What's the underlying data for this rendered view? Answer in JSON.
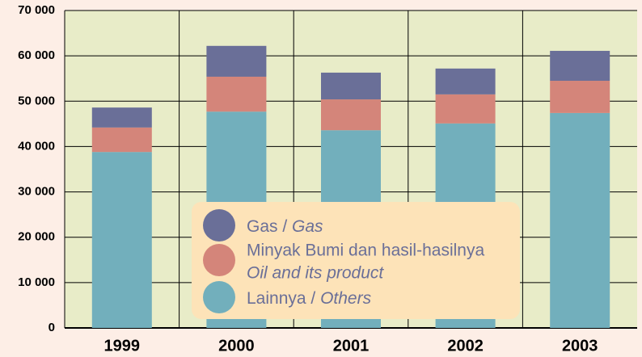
{
  "chart_data": {
    "type": "stacked_bar",
    "categories": [
      "1999",
      "2000",
      "2001",
      "2002",
      "2003"
    ],
    "series": [
      {
        "name": "Lainnya / ",
        "name_italic": "Others",
        "color": "#72afbc",
        "values": [
          38800,
          47700,
          43600,
          45100,
          47400
        ]
      },
      {
        "name": "Minyak Bumi dan hasil-hasilnya",
        "name_italic": "Oil and its product",
        "color": "#d4857a",
        "values": [
          5400,
          7700,
          6800,
          6400,
          7100
        ]
      },
      {
        "name": "Gas / ",
        "name_italic": "Gas",
        "color": "#6a6f98",
        "values": [
          4400,
          6800,
          5900,
          5700,
          6600
        ]
      }
    ],
    "ylim": [
      0,
      70000
    ],
    "yticks": [
      0,
      {
        "value": 10000,
        "label": "10 000"
      },
      {
        "value": 20000,
        "label": "20 000"
      },
      {
        "value": 30000,
        "label": "30 000"
      },
      {
        "value": 40000,
        "label": "40 000"
      },
      {
        "value": 50000,
        "label": "50 000"
      },
      {
        "value": 60000,
        "label": "60 000"
      },
      {
        "value": 70000,
        "label": "70 000"
      }
    ],
    "grid": true
  }
}
